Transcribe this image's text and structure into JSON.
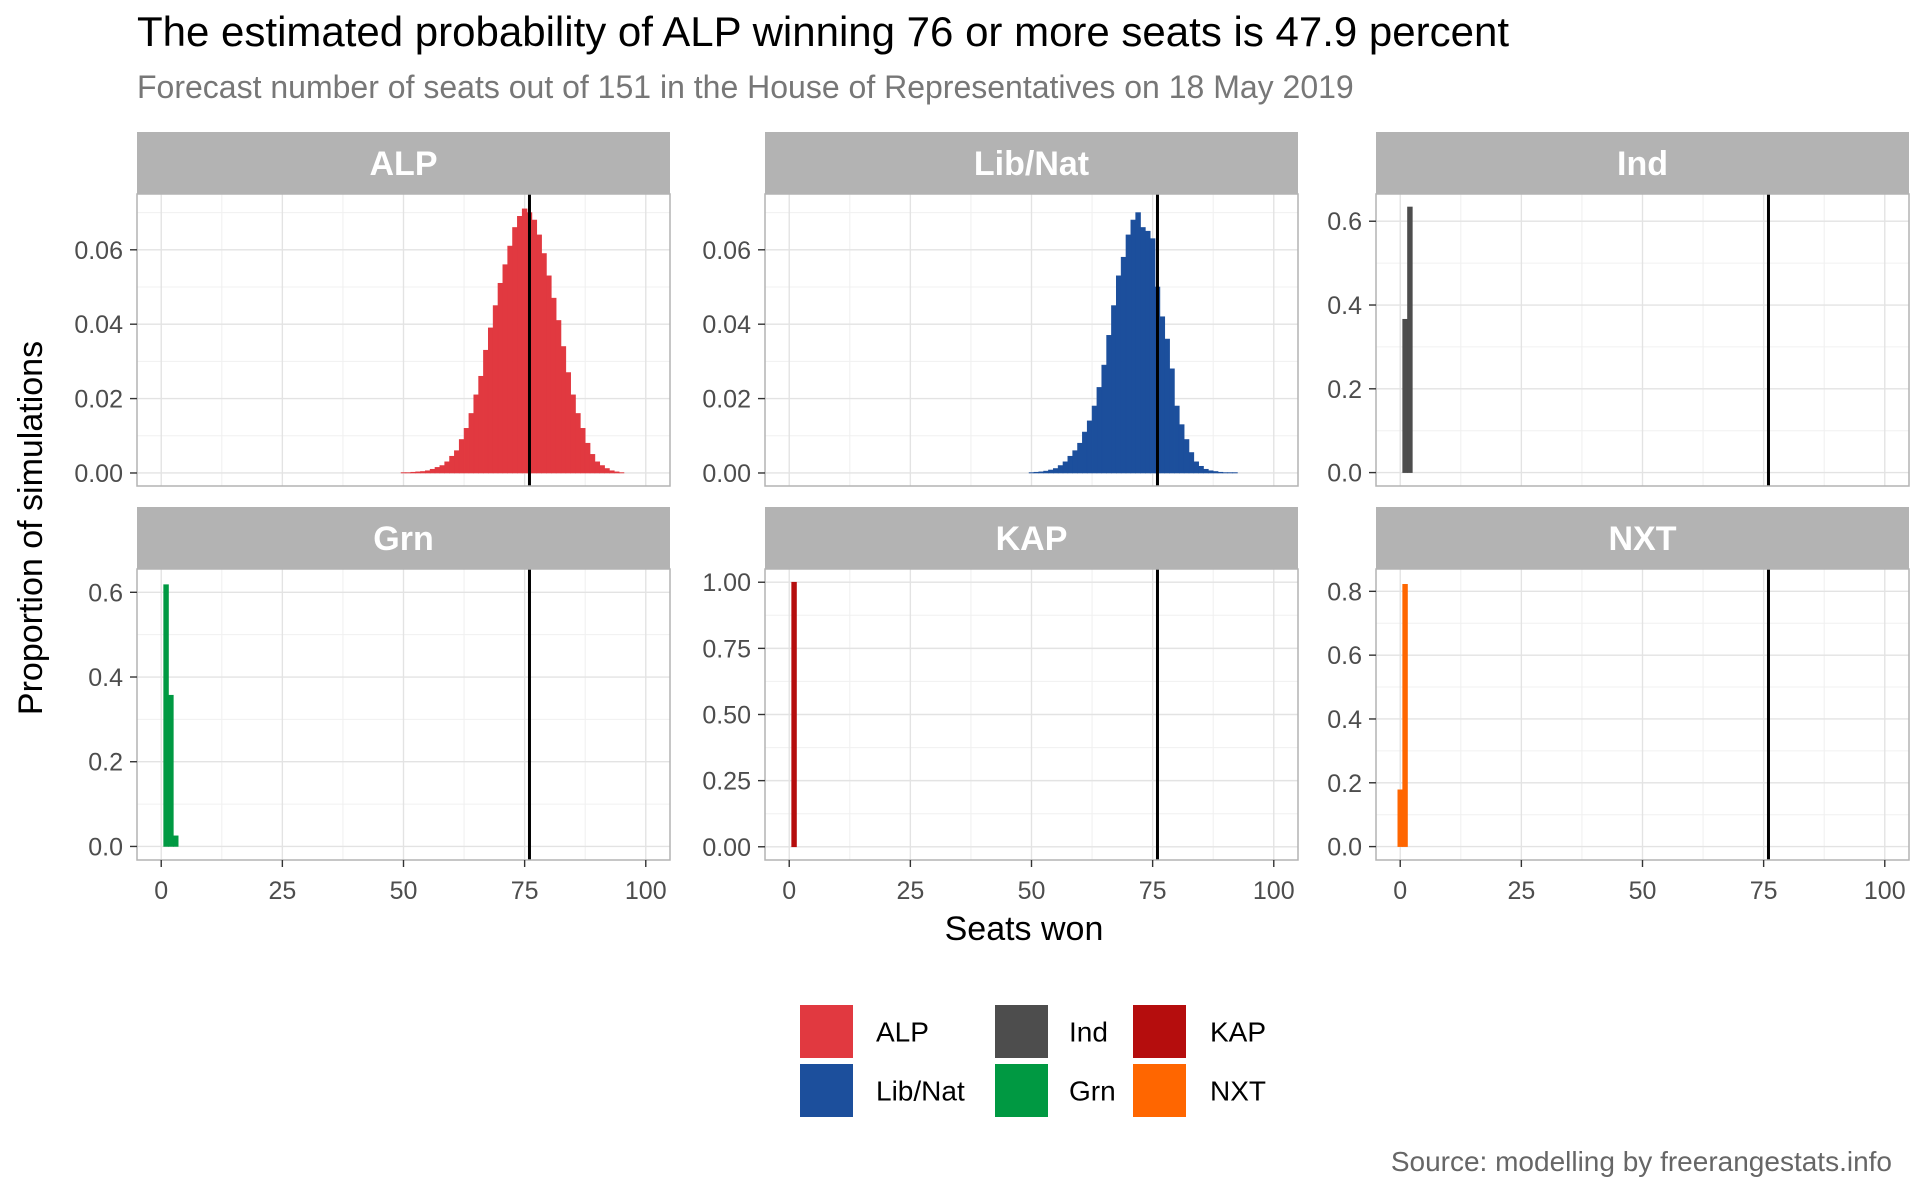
{
  "title": "The estimated probability of ALP winning 76 or more seats is 47.9 percent",
  "subtitle": "Forecast number of seats out of 151 in the House of Representatives on 18 May 2019",
  "caption": "Source: modelling by freerangestats.info",
  "chart_data": {
    "type": "bar",
    "xlabel": "Seats won",
    "ylabel": "Proportion of simulations",
    "xlim": [
      -5,
      105
    ],
    "xticks": [
      0,
      25,
      50,
      75,
      100
    ],
    "reference_line_x": 76,
    "grid": true,
    "legend_position": "bottom",
    "legend": [
      {
        "name": "ALP",
        "color": "#E13940"
      },
      {
        "name": "Lib/Nat",
        "color": "#1C4F9C"
      },
      {
        "name": "Ind",
        "color": "#4D4D4D"
      },
      {
        "name": "Grn",
        "color": "#009942"
      },
      {
        "name": "KAP",
        "color": "#B50D0D"
      },
      {
        "name": "NXT",
        "color": "#FF6600"
      }
    ],
    "panels": [
      {
        "name": "ALP",
        "color": "#E13940",
        "ylim": [
          -0.0035,
          0.075
        ],
        "yticks": [
          0,
          0.02,
          0.04,
          0.06
        ],
        "ytick_labels": [
          "0.00",
          "0.02",
          "0.04",
          "0.06"
        ],
        "x": [
          50,
          51,
          52,
          53,
          54,
          55,
          56,
          57,
          58,
          59,
          60,
          61,
          62,
          63,
          64,
          65,
          66,
          67,
          68,
          69,
          70,
          71,
          72,
          73,
          74,
          75,
          76,
          77,
          78,
          79,
          80,
          81,
          82,
          83,
          84,
          85,
          86,
          87,
          88,
          89,
          90,
          91,
          92,
          93,
          94,
          95
        ],
        "values": [
          0.0001,
          0.0001,
          0.0002,
          0.0003,
          0.0004,
          0.0006,
          0.001,
          0.0015,
          0.002,
          0.003,
          0.0045,
          0.006,
          0.009,
          0.012,
          0.016,
          0.021,
          0.026,
          0.033,
          0.039,
          0.045,
          0.051,
          0.056,
          0.061,
          0.066,
          0.069,
          0.071,
          0.07,
          0.068,
          0.064,
          0.059,
          0.053,
          0.047,
          0.041,
          0.034,
          0.027,
          0.021,
          0.016,
          0.012,
          0.008,
          0.005,
          0.003,
          0.002,
          0.0012,
          0.0006,
          0.0003,
          0.0001
        ]
      },
      {
        "name": "Lib/Nat",
        "color": "#1C4F9C",
        "ylim": [
          -0.0035,
          0.075
        ],
        "yticks": [
          0,
          0.02,
          0.04,
          0.06
        ],
        "ytick_labels": [
          "0.00",
          "0.02",
          "0.04",
          "0.06"
        ],
        "x": [
          50,
          51,
          52,
          53,
          54,
          55,
          56,
          57,
          58,
          59,
          60,
          61,
          62,
          63,
          64,
          65,
          66,
          67,
          68,
          69,
          70,
          71,
          72,
          73,
          74,
          75,
          76,
          77,
          78,
          79,
          80,
          81,
          82,
          83,
          84,
          85,
          86,
          87,
          88,
          89,
          90,
          91,
          92
        ],
        "values": [
          0.0001,
          0.0002,
          0.0003,
          0.0005,
          0.0008,
          0.0012,
          0.002,
          0.003,
          0.0045,
          0.006,
          0.008,
          0.011,
          0.014,
          0.018,
          0.023,
          0.029,
          0.037,
          0.045,
          0.053,
          0.058,
          0.064,
          0.068,
          0.07,
          0.066,
          0.065,
          0.063,
          0.05,
          0.042,
          0.036,
          0.028,
          0.018,
          0.013,
          0.009,
          0.0055,
          0.003,
          0.0018,
          0.001,
          0.0006,
          0.0004,
          0.0002,
          0.0001,
          0.0001,
          0.0001
        ]
      },
      {
        "name": "Ind",
        "color": "#4D4D4D",
        "ylim": [
          -0.032,
          0.665
        ],
        "yticks": [
          0,
          0.2,
          0.4,
          0.6
        ],
        "ytick_labels": [
          "0.0",
          "0.2",
          "0.4",
          "0.6"
        ],
        "x": [
          1,
          2
        ],
        "values": [
          0.366,
          0.634
        ]
      },
      {
        "name": "Grn",
        "color": "#009942",
        "ylim": [
          -0.032,
          0.655
        ],
        "yticks": [
          0,
          0.2,
          0.4,
          0.6
        ],
        "ytick_labels": [
          "0.0",
          "0.2",
          "0.4",
          "0.6"
        ],
        "x": [
          1,
          2,
          3
        ],
        "values": [
          0.618,
          0.357,
          0.025
        ]
      },
      {
        "name": "KAP",
        "color": "#B50D0D",
        "ylim": [
          -0.05,
          1.05
        ],
        "yticks": [
          0,
          0.25,
          0.5,
          0.75,
          1.0
        ],
        "ytick_labels": [
          "0.00",
          "0.25",
          "0.50",
          "0.75",
          "1.00"
        ],
        "x": [
          1
        ],
        "values": [
          1.0
        ]
      },
      {
        "name": "NXT",
        "color": "#FF6600",
        "ylim": [
          -0.042,
          0.87
        ],
        "yticks": [
          0,
          0.2,
          0.4,
          0.6,
          0.8
        ],
        "ytick_labels": [
          "0.0",
          "0.2",
          "0.4",
          "0.6",
          "0.8"
        ],
        "x": [
          0,
          1
        ],
        "values": [
          0.178,
          0.822
        ]
      }
    ]
  }
}
